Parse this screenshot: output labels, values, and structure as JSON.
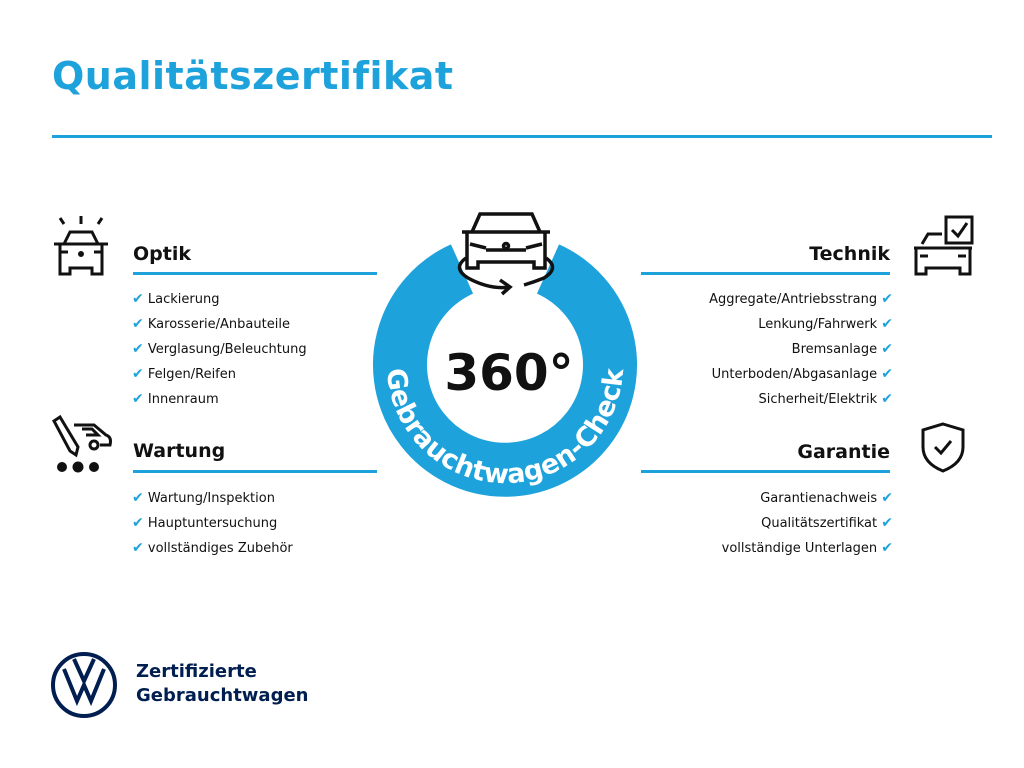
{
  "title": "Qualitätszertifikat",
  "center": {
    "number": "360°",
    "ring_text": "Gebrauchtwagen-Check"
  },
  "check_icon": "✔",
  "sections": {
    "optik": {
      "heading": "Optik",
      "icon": "car-lights-icon",
      "items": [
        "Lackierung",
        "Karosserie/Anbauteile",
        "Verglasung/Beleuchtung",
        "Felgen/Reifen",
        "Innenraum"
      ]
    },
    "wartung": {
      "heading": "Wartung",
      "icon": "service-tools-icon",
      "items": [
        "Wartung/Inspektion",
        "Hauptuntersuchung",
        "vollständiges Zubehör"
      ]
    },
    "technik": {
      "heading": "Technik",
      "icon": "car-checkbox-icon",
      "items": [
        "Aggregate/Antriebsstrang",
        "Lenkung/Fahrwerk",
        "Bremsanlage",
        "Unterboden/Abgasanlage",
        "Sicherheit/Elektrik"
      ]
    },
    "garantie": {
      "heading": "Garantie",
      "icon": "shield-check-icon",
      "items": [
        "Garantienachweis",
        "Qualitätszertifikat",
        "vollständige Unterlagen"
      ]
    }
  },
  "footer": {
    "line1": "Zertifizierte",
    "line2": "Gebrauchtwagen",
    "logo": "VW"
  },
  "colors": {
    "accent": "#1ea2dc",
    "navy": "#001e50",
    "text": "#111111"
  }
}
